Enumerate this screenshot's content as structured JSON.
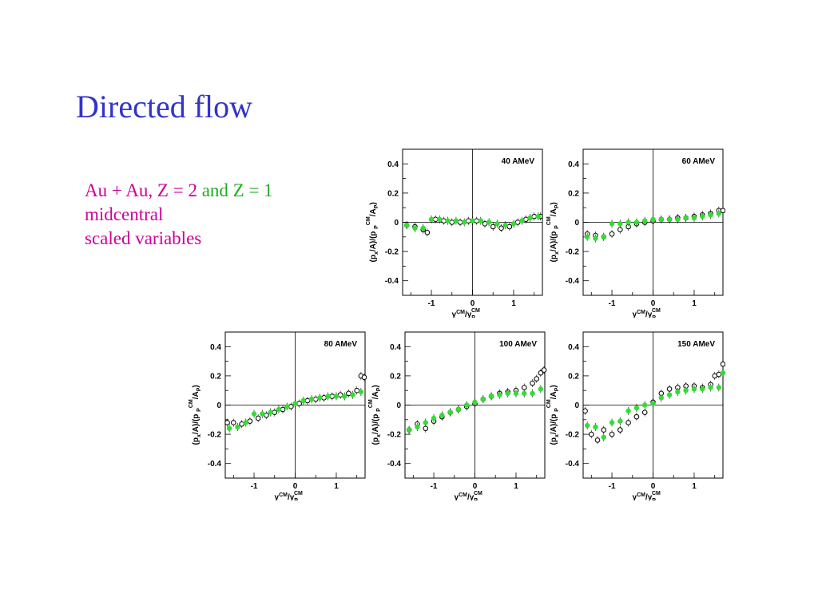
{
  "slide": {
    "title": "Directed flow",
    "subtitle": {
      "part1": "Au + Au, Z = 2 ",
      "part2": "and Z = 1",
      "line2": "midcentral",
      "line3": "scaled variables"
    }
  },
  "colors": {
    "title": "#3333cc",
    "subtitle": "#cc0099",
    "green": "#22aa22",
    "z1_marker": "#33dd33"
  },
  "chart_data": [
    {
      "type": "scatter",
      "title": "40 AMeV",
      "xlim": [
        -1.7,
        1.7
      ],
      "ylim": [
        -0.5,
        0.5
      ],
      "xticks": [
        -1,
        0,
        1
      ],
      "yticks": [
        -0.4,
        -0.2,
        0,
        0.2,
        0.4
      ],
      "xlabel": "y CM/y P CM",
      "ylabel": "(px/A)/(p P CM/A P)",
      "series": [
        {
          "marker": "open-black",
          "x": [
            -1.6,
            -1.4,
            -1.2,
            -1.1,
            -0.9,
            -0.7,
            -0.5,
            -0.3,
            -0.1,
            0.1,
            0.3,
            0.5,
            0.7,
            0.9,
            1.1,
            1.3,
            1.5,
            1.65
          ],
          "y": [
            -0.02,
            -0.03,
            -0.05,
            -0.07,
            0.02,
            0.01,
            0.0,
            0.0,
            0.01,
            0.01,
            -0.01,
            -0.03,
            -0.04,
            -0.03,
            0.0,
            0.02,
            0.04,
            0.04
          ]
        },
        {
          "marker": "filled-green",
          "x": [
            -1.6,
            -1.4,
            -1.2,
            -1.0,
            -0.8,
            -0.6,
            -0.4,
            -0.2,
            0.0,
            0.2,
            0.4,
            0.6,
            0.8,
            1.0,
            1.2,
            1.4,
            1.6
          ],
          "y": [
            -0.02,
            -0.04,
            -0.04,
            0.02,
            0.02,
            0.01,
            0.01,
            0.0,
            0.01,
            0.01,
            0.0,
            -0.01,
            -0.02,
            -0.01,
            0.01,
            0.03,
            0.04
          ]
        }
      ]
    },
    {
      "type": "scatter",
      "title": "60 AMeV",
      "xlim": [
        -1.7,
        1.7
      ],
      "ylim": [
        -0.5,
        0.5
      ],
      "xticks": [
        -1,
        0,
        1
      ],
      "yticks": [
        -0.4,
        -0.2,
        0,
        0.2,
        0.4
      ],
      "xlabel": "y CM/y P CM",
      "ylabel": "(px/A)/(p P CM/A P)",
      "series": [
        {
          "marker": "open-black",
          "x": [
            -1.6,
            -1.4,
            -1.2,
            -1.0,
            -0.8,
            -0.6,
            -0.4,
            -0.2,
            0.0,
            0.2,
            0.4,
            0.6,
            0.8,
            1.0,
            1.2,
            1.4,
            1.6,
            1.7
          ],
          "y": [
            -0.08,
            -0.09,
            -0.1,
            -0.08,
            -0.05,
            -0.03,
            -0.01,
            0.0,
            0.01,
            0.02,
            0.02,
            0.03,
            0.03,
            0.04,
            0.05,
            0.06,
            0.08,
            0.08
          ]
        },
        {
          "marker": "filled-green",
          "x": [
            -1.6,
            -1.4,
            -1.2,
            -1.0,
            -0.8,
            -0.6,
            -0.4,
            -0.2,
            0.0,
            0.2,
            0.4,
            0.6,
            0.8,
            1.0,
            1.2,
            1.4,
            1.6
          ],
          "y": [
            -0.1,
            -0.11,
            -0.1,
            -0.01,
            -0.01,
            0.0,
            0.0,
            0.01,
            0.02,
            0.02,
            0.02,
            0.02,
            0.03,
            0.03,
            0.04,
            0.05,
            0.06
          ]
        }
      ]
    },
    {
      "type": "scatter",
      "title": "80 AMeV",
      "xlim": [
        -1.7,
        1.7
      ],
      "ylim": [
        -0.5,
        0.5
      ],
      "xticks": [
        -1,
        0,
        1
      ],
      "yticks": [
        -0.4,
        -0.2,
        0,
        0.2,
        0.4
      ],
      "xlabel": "y CM/y P CM",
      "ylabel": "(px/A)/(p P CM/A P)",
      "series": [
        {
          "marker": "open-black",
          "x": [
            -1.65,
            -1.5,
            -1.3,
            -1.1,
            -0.9,
            -0.7,
            -0.5,
            -0.3,
            -0.1,
            0.1,
            0.3,
            0.5,
            0.7,
            0.9,
            1.1,
            1.3,
            1.5,
            1.6,
            1.68
          ],
          "y": [
            -0.12,
            -0.12,
            -0.13,
            -0.11,
            -0.09,
            -0.07,
            -0.05,
            -0.03,
            -0.01,
            0.01,
            0.03,
            0.04,
            0.05,
            0.06,
            0.07,
            0.08,
            0.1,
            0.2,
            0.19
          ]
        },
        {
          "marker": "filled-green",
          "x": [
            -1.6,
            -1.4,
            -1.2,
            -1.0,
            -0.8,
            -0.6,
            -0.4,
            -0.2,
            0.0,
            0.2,
            0.4,
            0.6,
            0.8,
            1.0,
            1.2,
            1.4,
            1.6
          ],
          "y": [
            -0.16,
            -0.15,
            -0.12,
            -0.06,
            -0.06,
            -0.05,
            -0.03,
            -0.01,
            0.01,
            0.03,
            0.04,
            0.05,
            0.06,
            0.06,
            0.06,
            0.07,
            0.09
          ]
        }
      ]
    },
    {
      "type": "scatter",
      "title": "100 AMeV",
      "xlim": [
        -1.7,
        1.7
      ],
      "ylim": [
        -0.5,
        0.5
      ],
      "xticks": [
        -1,
        0,
        1
      ],
      "yticks": [
        -0.4,
        -0.2,
        0,
        0.2,
        0.4
      ],
      "xlabel": "y CM/y P CM",
      "ylabel": "(px/A)/(p P CM/A P)",
      "series": [
        {
          "marker": "open-black",
          "x": [
            -1.6,
            -1.4,
            -1.2,
            -1.0,
            -0.8,
            -0.6,
            -0.4,
            -0.2,
            0.0,
            0.2,
            0.4,
            0.6,
            0.8,
            1.0,
            1.2,
            1.4,
            1.5,
            1.6,
            1.68
          ],
          "y": [
            -0.17,
            -0.13,
            -0.16,
            -0.11,
            -0.08,
            -0.05,
            -0.03,
            -0.01,
            0.01,
            0.04,
            0.06,
            0.08,
            0.09,
            0.1,
            0.12,
            0.15,
            0.18,
            0.22,
            0.24
          ]
        },
        {
          "marker": "filled-green",
          "x": [
            -1.6,
            -1.4,
            -1.2,
            -1.0,
            -0.8,
            -0.6,
            -0.4,
            -0.2,
            0.0,
            0.2,
            0.4,
            0.6,
            0.8,
            1.0,
            1.2,
            1.4,
            1.6
          ],
          "y": [
            -0.17,
            -0.15,
            -0.12,
            -0.09,
            -0.07,
            -0.05,
            -0.03,
            0.0,
            0.02,
            0.04,
            0.06,
            0.07,
            0.08,
            0.08,
            0.08,
            0.08,
            0.11
          ]
        }
      ]
    },
    {
      "type": "scatter",
      "title": "150 AMeV",
      "xlim": [
        -1.7,
        1.7
      ],
      "ylim": [
        -0.5,
        0.5
      ],
      "xticks": [
        -1,
        0,
        1
      ],
      "yticks": [
        -0.4,
        -0.2,
        0,
        0.2,
        0.4
      ],
      "xlabel": "y CM/y P CM",
      "ylabel": "(px/A)/(p P CM/A P)",
      "series": [
        {
          "marker": "open-black",
          "x": [
            -1.65,
            -1.5,
            -1.35,
            -1.2,
            -1.0,
            -0.8,
            -0.6,
            -0.4,
            -0.2,
            0.0,
            0.2,
            0.4,
            0.6,
            0.8,
            1.0,
            1.2,
            1.4,
            1.5,
            1.6,
            1.7
          ],
          "y": [
            -0.04,
            -0.2,
            -0.24,
            -0.17,
            -0.2,
            -0.17,
            -0.12,
            -0.08,
            -0.05,
            0.02,
            0.08,
            0.11,
            0.12,
            0.13,
            0.13,
            0.12,
            0.14,
            0.2,
            0.21,
            0.28
          ]
        },
        {
          "marker": "filled-green",
          "x": [
            -1.6,
            -1.4,
            -1.2,
            -1.0,
            -0.8,
            -0.6,
            -0.4,
            -0.2,
            0.0,
            0.2,
            0.4,
            0.6,
            0.8,
            1.0,
            1.2,
            1.4,
            1.6,
            1.7
          ],
          "y": [
            -0.14,
            -0.15,
            -0.22,
            -0.12,
            -0.11,
            -0.04,
            -0.02,
            0.0,
            0.01,
            0.05,
            0.07,
            0.09,
            0.1,
            0.11,
            0.11,
            0.12,
            0.12,
            0.22
          ]
        }
      ]
    }
  ]
}
